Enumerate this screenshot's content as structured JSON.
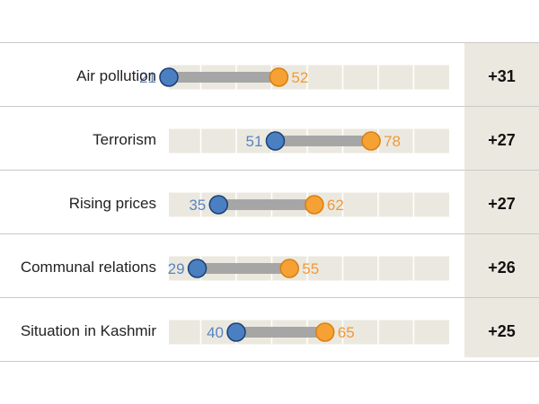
{
  "chart_data": {
    "type": "dot",
    "xlim": [
      0,
      100
    ],
    "grid": true,
    "colors": {
      "low": "#4a7fc1",
      "high": "#f5a133",
      "connector": "#a6a6a6",
      "track": "#ebe9df"
    },
    "rows": [
      {
        "label": "Air pollution",
        "low": 21,
        "high": 52,
        "diff": "+31"
      },
      {
        "label": "Terrorism",
        "low": 51,
        "high": 78,
        "diff": "+27"
      },
      {
        "label": "Rising prices",
        "low": 35,
        "high": 62,
        "diff": "+27"
      },
      {
        "label": "Communal relations",
        "low": 29,
        "high": 55,
        "diff": "+26"
      },
      {
        "label": "Situation in Kashmir",
        "low": 40,
        "high": 65,
        "diff": "+25"
      }
    ]
  }
}
